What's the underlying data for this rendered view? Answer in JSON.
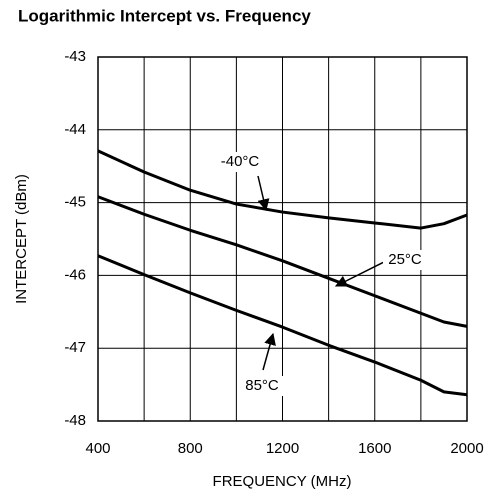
{
  "chart_data": {
    "type": "line",
    "title": "Logarithmic Intercept vs. Frequency",
    "x_label": "FREQUENCY (MHz)",
    "y_label": "INTERCEPT (dBm)",
    "x": [
      400,
      600,
      800,
      1000,
      1200,
      1400,
      1600,
      1800,
      1900,
      2000
    ],
    "series": [
      {
        "name": "-40°C",
        "color": "#000000",
        "values": [
          -44.29,
          -44.58,
          -44.83,
          -45.02,
          -45.13,
          -45.21,
          -45.28,
          -45.35,
          -45.29,
          -45.17
        ]
      },
      {
        "name": "25°C",
        "color": "#000000",
        "values": [
          -44.92,
          -45.16,
          -45.38,
          -45.58,
          -45.8,
          -46.04,
          -46.28,
          -46.52,
          -46.64,
          -46.7
        ]
      },
      {
        "name": "85°C",
        "color": "#000000",
        "values": [
          -45.73,
          -45.99,
          -46.24,
          -46.48,
          -46.71,
          -46.96,
          -47.19,
          -47.44,
          -47.6,
          -47.64
        ]
      }
    ],
    "xlim": [
      400,
      2000
    ],
    "xticks": [
      400,
      800,
      1200,
      1600,
      2000
    ],
    "ylim": [
      -48,
      -43
    ],
    "yticks": [
      -48,
      -47,
      -46,
      -45,
      -44,
      -43
    ],
    "grid": true
  }
}
